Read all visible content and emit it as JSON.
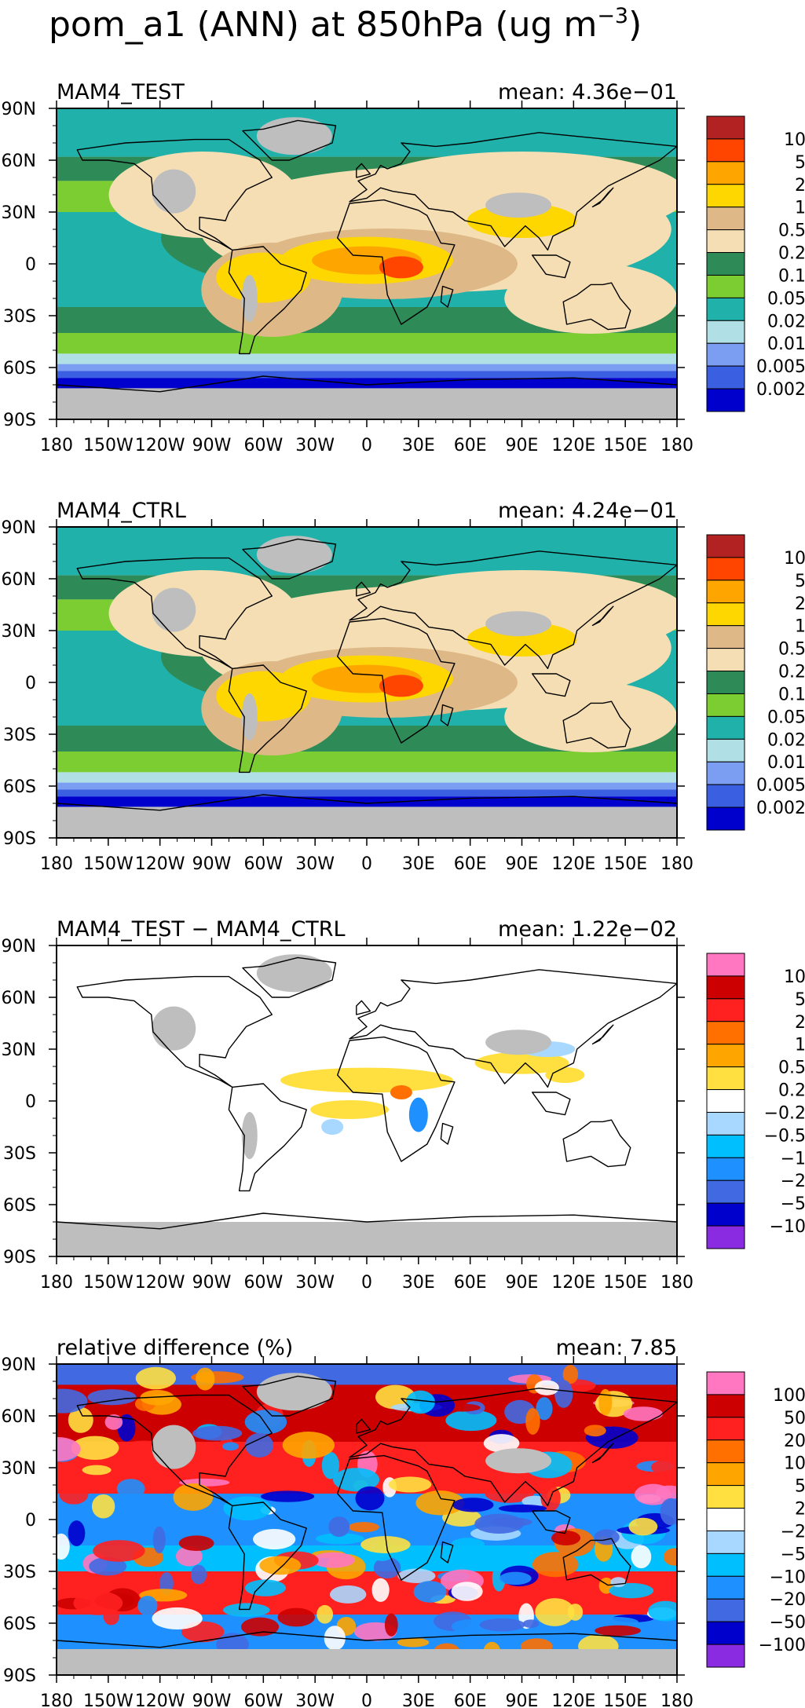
{
  "figure": {
    "title_main": "pom_a1 (ANN) at 850hPa (ug m",
    "title_exp": "−3",
    "title_close": ")"
  },
  "colors": {
    "land_missing": "#bebebe",
    "coast": "#000000",
    "zero_bg": "#ffffff"
  },
  "chart_data": [
    {
      "type": "heatmap",
      "name": "MAM4_TEST",
      "title_left": "MAM4_TEST",
      "title_right": "mean: 4.36e−01",
      "xlabel": "",
      "ylabel": "",
      "xlim": [
        -180,
        180
      ],
      "ylim": [
        -90,
        90
      ],
      "x_ticks": [
        "180",
        "150W",
        "120W",
        "90W",
        "60W",
        "30W",
        "0",
        "30E",
        "60E",
        "90E",
        "120E",
        "150E",
        "180"
      ],
      "y_ticks": [
        "90N",
        "60N",
        "30N",
        "0",
        "30S",
        "60S",
        "90S"
      ],
      "colorbar": {
        "colors": [
          "#b22222",
          "#ff4500",
          "#ffa500",
          "#ffd700",
          "#deb887",
          "#f5deb3",
          "#2e8b57",
          "#7ccd32",
          "#20b2aa",
          "#b0e0e6",
          "#7b9df2",
          "#3a5fe0",
          "#0000cd"
        ],
        "labels": [
          "10",
          "5",
          "2",
          "1",
          "0.5",
          "0.2",
          "0.1",
          "0.05",
          "0.02",
          "0.01",
          "0.005",
          "0.002"
        ]
      }
    },
    {
      "type": "heatmap",
      "name": "MAM4_CTRL",
      "title_left": "MAM4_CTRL",
      "title_right": "mean: 4.24e−01",
      "xlabel": "",
      "ylabel": "",
      "xlim": [
        -180,
        180
      ],
      "ylim": [
        -90,
        90
      ],
      "x_ticks": [
        "180",
        "150W",
        "120W",
        "90W",
        "60W",
        "30W",
        "0",
        "30E",
        "60E",
        "90E",
        "120E",
        "150E",
        "180"
      ],
      "y_ticks": [
        "90N",
        "60N",
        "30N",
        "0",
        "30S",
        "60S",
        "90S"
      ],
      "colorbar": {
        "colors": [
          "#b22222",
          "#ff4500",
          "#ffa500",
          "#ffd700",
          "#deb887",
          "#f5deb3",
          "#2e8b57",
          "#7ccd32",
          "#20b2aa",
          "#b0e0e6",
          "#7b9df2",
          "#3a5fe0",
          "#0000cd"
        ],
        "labels": [
          "10",
          "5",
          "2",
          "1",
          "0.5",
          "0.2",
          "0.1",
          "0.05",
          "0.02",
          "0.01",
          "0.005",
          "0.002"
        ]
      }
    },
    {
      "type": "heatmap",
      "name": "difference",
      "title_left": "MAM4_TEST − MAM4_CTRL",
      "title_right": "mean: 1.22e−02",
      "xlabel": "",
      "ylabel": "",
      "xlim": [
        -180,
        180
      ],
      "ylim": [
        -90,
        90
      ],
      "x_ticks": [
        "180",
        "150W",
        "120W",
        "90W",
        "60W",
        "30W",
        "0",
        "30E",
        "60E",
        "90E",
        "120E",
        "150E",
        "180"
      ],
      "y_ticks": [
        "90N",
        "60N",
        "30N",
        "0",
        "30S",
        "60S",
        "90S"
      ],
      "colorbar": {
        "colors": [
          "#ff77c0",
          "#cc0000",
          "#ff2020",
          "#ff7000",
          "#ffa500",
          "#ffe040",
          "#ffffff",
          "#a8d8ff",
          "#00bfff",
          "#1e90ff",
          "#4169e1",
          "#0000cd",
          "#8a2be2"
        ],
        "labels": [
          "10",
          "5",
          "2",
          "1",
          "0.5",
          "0.2",
          "−0.2",
          "−0.5",
          "−1",
          "−2",
          "−5",
          "−10"
        ]
      }
    },
    {
      "type": "heatmap",
      "name": "relative_difference",
      "title_left": "relative difference (%)",
      "title_right": "mean:  7.85",
      "xlabel": "",
      "ylabel": "",
      "xlim": [
        -180,
        180
      ],
      "ylim": [
        -90,
        90
      ],
      "x_ticks": [
        "180",
        "150W",
        "120W",
        "90W",
        "60W",
        "30W",
        "0",
        "30E",
        "60E",
        "90E",
        "120E",
        "150E",
        "180"
      ],
      "y_ticks": [
        "90N",
        "60N",
        "30N",
        "0",
        "30S",
        "60S",
        "90S"
      ],
      "colorbar": {
        "colors": [
          "#ff77c0",
          "#cc0000",
          "#ff2020",
          "#ff7000",
          "#ffa500",
          "#ffe040",
          "#ffffff",
          "#a8d8ff",
          "#00bfff",
          "#1e90ff",
          "#4169e1",
          "#0000cd",
          "#8a2be2"
        ],
        "labels": [
          "100",
          "50",
          "20",
          "10",
          "5",
          "2",
          "−2",
          "−5",
          "−10",
          "−20",
          "−50",
          "−100"
        ]
      }
    }
  ]
}
